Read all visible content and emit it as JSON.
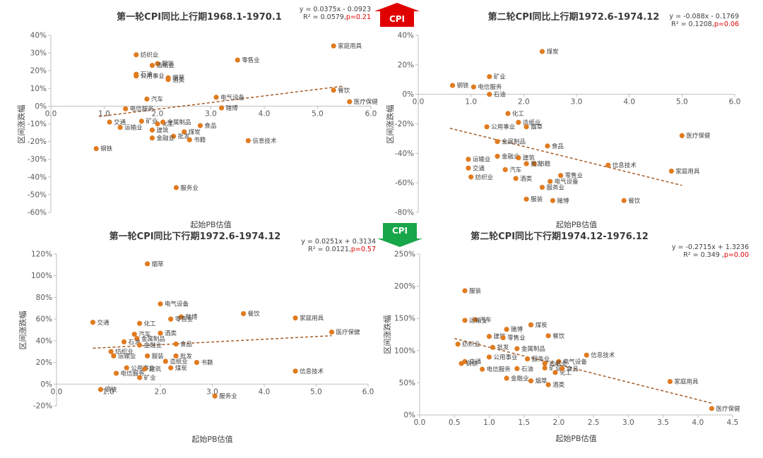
{
  "colors": {
    "point": "#e07b20",
    "trend": "#a0521a",
    "axis": "#bfbfbf",
    "up_arrow": "#e00000",
    "down_arrow": "#17a648"
  },
  "arrows": [
    {
      "label": "CPI",
      "direction": "up"
    },
    {
      "label": "CPI",
      "direction": "down"
    }
  ],
  "chart_data": [
    {
      "type": "scatter",
      "title": "第一轮CPI同比上行期1968.1-1970.1",
      "xlabel": "起始PB估值",
      "ylabel": "区间涨跌幅",
      "xlim": [
        0,
        6.0
      ],
      "ylim": [
        -0.6,
        0.4
      ],
      "xticks": [
        "0.0",
        "1.0",
        "2.0",
        "3.0",
        "4.0",
        "5.0",
        "6.0"
      ],
      "yticks": [
        "-60%",
        "-50%",
        "-40%",
        "-30%",
        "-20%",
        "-10%",
        "0%",
        "10%",
        "20%",
        "30%",
        "40%"
      ],
      "equation": "y = 0.0375x - 0.0923",
      "r2_text": "R² = 0.0579,",
      "p_text": "p=0.21",
      "trendline": {
        "slope": 0.0375,
        "intercept": -0.0923,
        "x_range": [
          0.9,
          5.5
        ]
      },
      "points": [
        {
          "label": "家庭用具",
          "x": 5.3,
          "y": 0.34
        },
        {
          "label": "零售业",
          "x": 3.5,
          "y": 0.26
        },
        {
          "label": "纺织业",
          "x": 1.6,
          "y": 0.29
        },
        {
          "label": "服装",
          "x": 2.0,
          "y": 0.24
        },
        {
          "label": "造纸业",
          "x": 1.9,
          "y": 0.23
        },
        {
          "label": "石油",
          "x": 1.6,
          "y": 0.18
        },
        {
          "label": "烟草",
          "x": 2.2,
          "y": 0.16
        },
        {
          "label": "公用事业",
          "x": 1.6,
          "y": 0.17
        },
        {
          "label": "酒类",
          "x": 2.2,
          "y": 0.15
        },
        {
          "label": "餐饮",
          "x": 5.3,
          "y": 0.09
        },
        {
          "label": "电气设备",
          "x": 3.1,
          "y": 0.05
        },
        {
          "label": "汽车",
          "x": 1.8,
          "y": 0.04
        },
        {
          "label": "医疗保健",
          "x": 5.6,
          "y": 0.025
        },
        {
          "label": "赌博",
          "x": 3.2,
          "y": -0.01
        },
        {
          "label": "电信服务",
          "x": 1.4,
          "y": -0.015
        },
        {
          "label": "交通",
          "x": 1.1,
          "y": -0.09
        },
        {
          "label": "矿业",
          "x": 1.7,
          "y": -0.085
        },
        {
          "label": "化工",
          "x": 2.0,
          "y": -0.1
        },
        {
          "label": "金属制品",
          "x": 2.1,
          "y": -0.09
        },
        {
          "label": "食品",
          "x": 2.8,
          "y": -0.11
        },
        {
          "label": "运输业",
          "x": 1.3,
          "y": -0.12
        },
        {
          "label": "建筑",
          "x": 1.9,
          "y": -0.135
        },
        {
          "label": "煤炭",
          "x": 2.5,
          "y": -0.145
        },
        {
          "label": "批发",
          "x": 2.3,
          "y": -0.17
        },
        {
          "label": "书籍",
          "x": 2.6,
          "y": -0.19
        },
        {
          "label": "信息技术",
          "x": 3.7,
          "y": -0.195
        },
        {
          "label": "金融业",
          "x": 1.9,
          "y": -0.18
        },
        {
          "label": "钢铁",
          "x": 0.85,
          "y": -0.24
        },
        {
          "label": "服务业",
          "x": 2.35,
          "y": -0.46
        }
      ]
    },
    {
      "type": "scatter",
      "title": "第二轮CPI同比上行期1972.6-1974.12",
      "xlabel": "起始PB估值",
      "ylabel": "区间涨跌幅",
      "xlim": [
        0,
        6.0
      ],
      "ylim": [
        -0.8,
        0.4
      ],
      "xticks": [
        "0.0",
        "1.0",
        "2.0",
        "3.0",
        "4.0",
        "5.0",
        "6.0"
      ],
      "yticks": [
        "-80%",
        "-60%",
        "-40%",
        "-20%",
        "0%",
        "20%",
        "40%"
      ],
      "equation": "y = -0.088x - 0.1769",
      "r2_text": "R² = 0.1208,",
      "p_text": "p=0.06",
      "trendline": {
        "slope": -0.088,
        "intercept": -0.1769,
        "x_range": [
          0.6,
          5.0
        ]
      },
      "points": [
        {
          "label": "煤炭",
          "x": 2.35,
          "y": 0.29
        },
        {
          "label": "矿业",
          "x": 1.35,
          "y": 0.12
        },
        {
          "label": "钢铁",
          "x": 0.65,
          "y": 0.06
        },
        {
          "label": "电信服务",
          "x": 1.05,
          "y": 0.05
        },
        {
          "label": "石油",
          "x": 1.35,
          "y": 0.0
        },
        {
          "label": "化工",
          "x": 1.7,
          "y": -0.13
        },
        {
          "label": "造纸业",
          "x": 1.9,
          "y": -0.19
        },
        {
          "label": "公用事业",
          "x": 1.3,
          "y": -0.22
        },
        {
          "label": "烟草",
          "x": 2.05,
          "y": -0.22
        },
        {
          "label": "医疗保健",
          "x": 5.0,
          "y": -0.28
        },
        {
          "label": "金属制品",
          "x": 1.5,
          "y": -0.32
        },
        {
          "label": "食品",
          "x": 2.45,
          "y": -0.35
        },
        {
          "label": "金融业",
          "x": 1.5,
          "y": -0.42
        },
        {
          "label": "建筑",
          "x": 1.9,
          "y": -0.43
        },
        {
          "label": "运输业",
          "x": 0.95,
          "y": -0.44
        },
        {
          "label": "书籍",
          "x": 2.2,
          "y": -0.47
        },
        {
          "label": "批发",
          "x": 2.05,
          "y": -0.47
        },
        {
          "label": "信息技术",
          "x": 3.6,
          "y": -0.48
        },
        {
          "label": "交通",
          "x": 0.95,
          "y": -0.5
        },
        {
          "label": "汽车",
          "x": 1.65,
          "y": -0.51
        },
        {
          "label": "家庭用具",
          "x": 4.8,
          "y": -0.52
        },
        {
          "label": "纺织业",
          "x": 1.0,
          "y": -0.56
        },
        {
          "label": "酒类",
          "x": 1.85,
          "y": -0.57
        },
        {
          "label": "零售业",
          "x": 2.7,
          "y": -0.55
        },
        {
          "label": "电气设备",
          "x": 2.5,
          "y": -0.59
        },
        {
          "label": "服务业",
          "x": 2.35,
          "y": -0.63
        },
        {
          "label": "服装",
          "x": 2.05,
          "y": -0.71
        },
        {
          "label": "赌博",
          "x": 2.55,
          "y": -0.72
        },
        {
          "label": "餐饮",
          "x": 3.9,
          "y": -0.72
        }
      ]
    },
    {
      "type": "scatter",
      "title": "第一轮CPI同比下行期1972.6-1974.12",
      "xlabel": "起始PB估值",
      "ylabel": "区间涨跌幅",
      "xlim": [
        0,
        6.0
      ],
      "ylim": [
        -0.2,
        1.2
      ],
      "xticks": [
        "0.0",
        "1.0",
        "2.0",
        "3.0",
        "4.0",
        "5.0",
        "6.0"
      ],
      "yticks": [
        "-20%",
        "0%",
        "20%",
        "40%",
        "60%",
        "80%",
        "100%",
        "120%"
      ],
      "equation": "y = 0.0251x + 0.3134",
      "r2_text": "R² = 0.0121,",
      "p_text": "p=0.57",
      "trendline": {
        "slope": 0.0251,
        "intercept": 0.3134,
        "x_range": [
          0.7,
          5.3
        ]
      },
      "points": [
        {
          "label": "烟草",
          "x": 1.75,
          "y": 1.11
        },
        {
          "label": "电气设备",
          "x": 2.0,
          "y": 0.74
        },
        {
          "label": "餐饮",
          "x": 3.6,
          "y": 0.65
        },
        {
          "label": "赌博",
          "x": 2.4,
          "y": 0.62
        },
        {
          "label": "家庭用具",
          "x": 4.6,
          "y": 0.61
        },
        {
          "label": "零售业",
          "x": 2.2,
          "y": 0.6
        },
        {
          "label": "交通",
          "x": 0.7,
          "y": 0.57
        },
        {
          "label": "化工",
          "x": 1.6,
          "y": 0.56
        },
        {
          "label": "医疗保健",
          "x": 5.3,
          "y": 0.48
        },
        {
          "label": "酒类",
          "x": 2.0,
          "y": 0.47
        },
        {
          "label": "汽车",
          "x": 1.5,
          "y": 0.46
        },
        {
          "label": "金属制品",
          "x": 1.55,
          "y": 0.42
        },
        {
          "label": "石油",
          "x": 1.3,
          "y": 0.39
        },
        {
          "label": "食品",
          "x": 2.3,
          "y": 0.37
        },
        {
          "label": "金融业",
          "x": 1.6,
          "y": 0.36
        },
        {
          "label": "纺织业",
          "x": 1.05,
          "y": 0.3
        },
        {
          "label": "运输业",
          "x": 1.1,
          "y": 0.26
        },
        {
          "label": "服装",
          "x": 1.75,
          "y": 0.26
        },
        {
          "label": "批发",
          "x": 2.3,
          "y": 0.26
        },
        {
          "label": "造纸业",
          "x": 2.1,
          "y": 0.21
        },
        {
          "label": "书籍",
          "x": 2.7,
          "y": 0.2
        },
        {
          "label": "公用事业",
          "x": 1.35,
          "y": 0.15
        },
        {
          "label": "煤炭",
          "x": 2.2,
          "y": 0.15
        },
        {
          "label": "建筑",
          "x": 1.7,
          "y": 0.14
        },
        {
          "label": "电信服务",
          "x": 1.15,
          "y": 0.1
        },
        {
          "label": "信息技术",
          "x": 4.6,
          "y": 0.12
        },
        {
          "label": "矿业",
          "x": 1.6,
          "y": 0.06
        },
        {
          "label": "钢铁",
          "x": 0.85,
          "y": -0.05
        },
        {
          "label": "服务业",
          "x": 3.05,
          "y": -0.11
        }
      ]
    },
    {
      "type": "scatter",
      "title": "第二轮CPI同比下行期1974.12-1976.12",
      "xlabel": "起始PB估值",
      "ylabel": "区间涨跌幅",
      "xlim": [
        0,
        4.5
      ],
      "ylim": [
        0,
        2.5
      ],
      "xticks": [
        "0.0",
        "0.5",
        "1.0",
        "1.5",
        "2.0",
        "2.5",
        "3.0",
        "3.5",
        "4.0",
        "4.5"
      ],
      "yticks": [
        "0%",
        "50%",
        "100%",
        "150%",
        "200%",
        "250%"
      ],
      "equation": "y = -0.2715x + 1.3236",
      "r2_text": "R² = 0.349 ,",
      "p_text": "p=0.00",
      "trendline": {
        "slope": -0.2715,
        "intercept": 1.3236,
        "x_range": [
          0.5,
          4.2
        ]
      },
      "points": [
        {
          "label": "服装",
          "x": 0.65,
          "y": 1.93
        },
        {
          "label": "汽车",
          "x": 0.8,
          "y": 1.48
        },
        {
          "label": "运输业",
          "x": 0.65,
          "y": 1.47
        },
        {
          "label": "煤炭",
          "x": 1.6,
          "y": 1.4
        },
        {
          "label": "赌博",
          "x": 1.25,
          "y": 1.33
        },
        {
          "label": "餐饮",
          "x": 1.85,
          "y": 1.23
        },
        {
          "label": "建筑",
          "x": 1.0,
          "y": 1.22
        },
        {
          "label": "零售业",
          "x": 1.2,
          "y": 1.2
        },
        {
          "label": "纺织业",
          "x": 0.55,
          "y": 1.1
        },
        {
          "label": "批发",
          "x": 1.05,
          "y": 1.05
        },
        {
          "label": "金属制品",
          "x": 1.4,
          "y": 1.03
        },
        {
          "label": "信息技术",
          "x": 2.4,
          "y": 0.93
        },
        {
          "label": "公用事业",
          "x": 1.0,
          "y": 0.9
        },
        {
          "label": "服务业",
          "x": 1.55,
          "y": 0.87
        },
        {
          "label": "电气设备",
          "x": 2.0,
          "y": 0.83
        },
        {
          "label": "交通",
          "x": 0.65,
          "y": 0.83
        },
        {
          "label": "钢铁",
          "x": 0.6,
          "y": 0.8
        },
        {
          "label": "造纸业",
          "x": 1.8,
          "y": 0.8
        },
        {
          "label": "石油",
          "x": 1.4,
          "y": 0.72
        },
        {
          "label": "电信服务",
          "x": 0.9,
          "y": 0.71
        },
        {
          "label": "矿业",
          "x": 1.8,
          "y": 0.73
        },
        {
          "label": "化工",
          "x": 1.95,
          "y": 0.66
        },
        {
          "label": "食品",
          "x": 2.05,
          "y": 0.72
        },
        {
          "label": "金融业",
          "x": 1.25,
          "y": 0.57
        },
        {
          "label": "烟草",
          "x": 1.6,
          "y": 0.53
        },
        {
          "label": "酒类",
          "x": 1.85,
          "y": 0.47
        },
        {
          "label": "家庭用具",
          "x": 3.6,
          "y": 0.52
        },
        {
          "label": "医疗保健",
          "x": 4.2,
          "y": 0.1
        }
      ]
    }
  ]
}
